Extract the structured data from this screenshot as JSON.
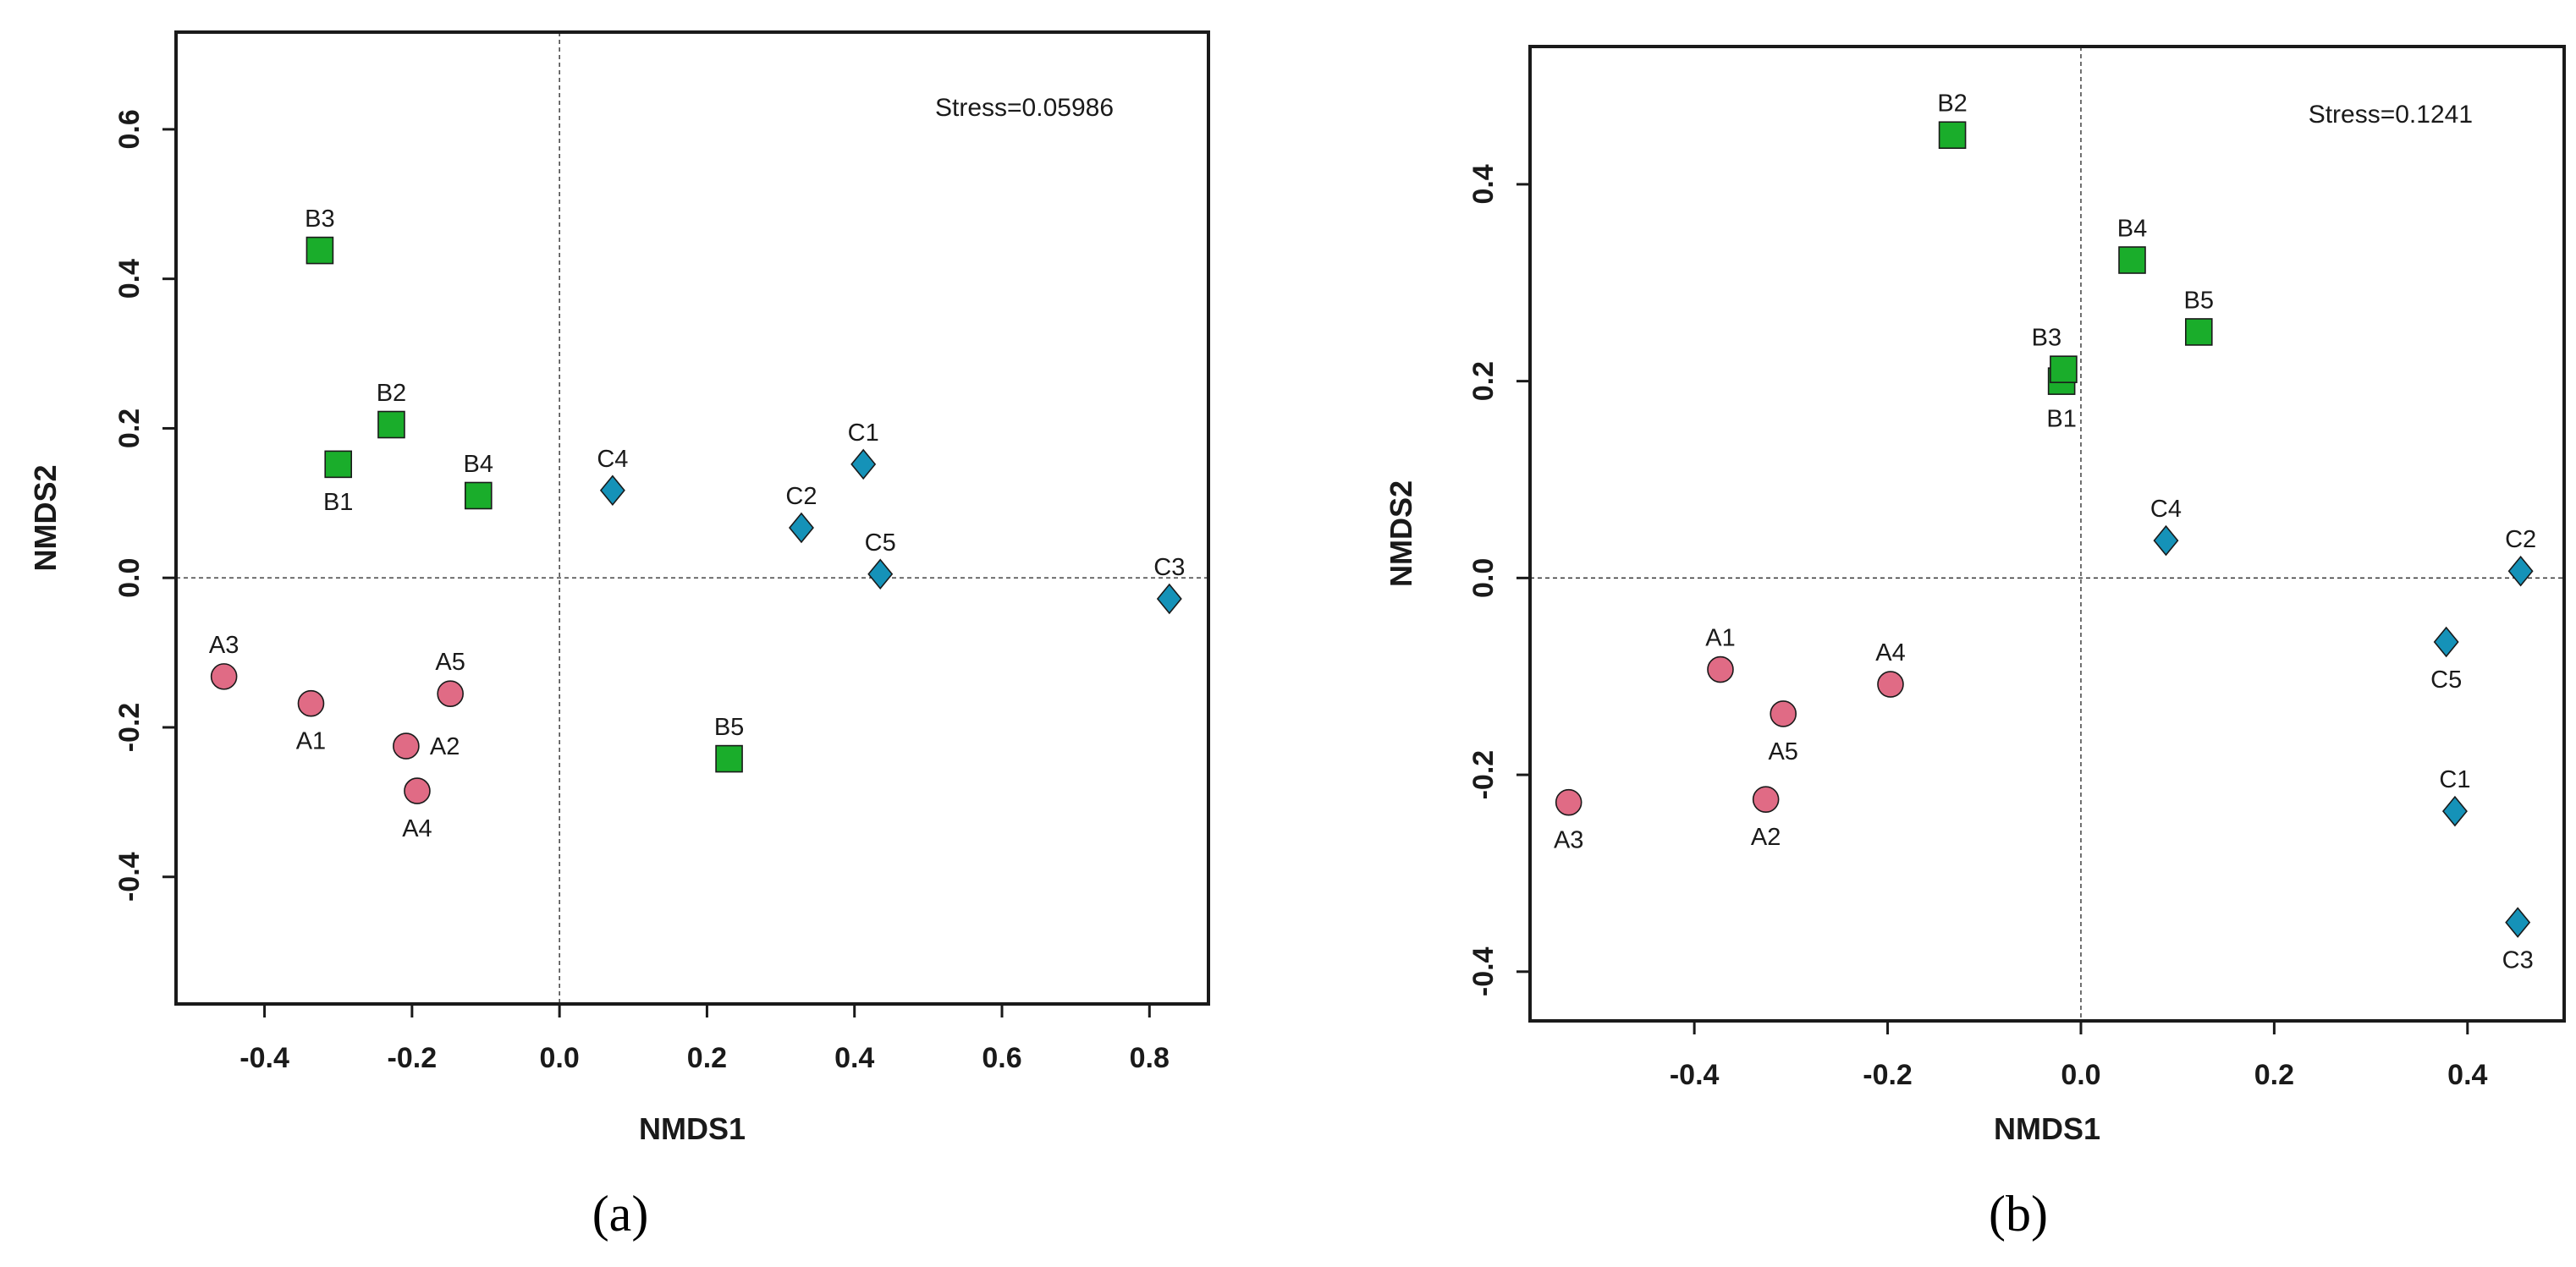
{
  "colors": {
    "A": "#e06b85",
    "B": "#1aad2b",
    "C": "#1592b8",
    "stroke": "#1a1a1a"
  },
  "chart_data": [
    {
      "type": "scatter",
      "panel_label": "(a)",
      "xlabel": "NMDS1",
      "ylabel": "NMDS2",
      "stress_text": "Stress=0.05986",
      "xlim": [
        -0.52,
        0.88
      ],
      "ylim": [
        -0.57,
        0.73
      ],
      "xticks": [
        -0.4,
        -0.2,
        0.0,
        0.2,
        0.4,
        0.6,
        0.8
      ],
      "xtick_labels": [
        "-0.4",
        "-0.2",
        "0.0",
        "0.2",
        "0.4",
        "0.6",
        "0.8"
      ],
      "yticks": [
        -0.4,
        -0.2,
        0.0,
        0.2,
        0.4,
        0.6
      ],
      "ytick_labels": [
        "-0.4",
        "-0.2",
        "0.0",
        "0.2",
        "0.4",
        "0.6"
      ],
      "reference_lines": {
        "x": 0,
        "y": 0
      },
      "series": [
        {
          "name": "A",
          "marker": "circle",
          "points": [
            {
              "label": "A1",
              "x": -0.337,
              "y": -0.168,
              "label_pos": "below"
            },
            {
              "label": "A2",
              "x": -0.208,
              "y": -0.225,
              "label_pos": "right"
            },
            {
              "label": "A3",
              "x": -0.455,
              "y": -0.132,
              "label_pos": "above"
            },
            {
              "label": "A4",
              "x": -0.193,
              "y": -0.285,
              "label_pos": "below"
            },
            {
              "label": "A5",
              "x": -0.148,
              "y": -0.155,
              "label_pos": "above"
            }
          ]
        },
        {
          "name": "B",
          "marker": "square",
          "points": [
            {
              "label": "B1",
              "x": -0.3,
              "y": 0.152,
              "label_pos": "below"
            },
            {
              "label": "B2",
              "x": -0.228,
              "y": 0.205,
              "label_pos": "above"
            },
            {
              "label": "B3",
              "x": -0.325,
              "y": 0.438,
              "label_pos": "above"
            },
            {
              "label": "B4",
              "x": -0.11,
              "y": 0.11,
              "label_pos": "above"
            },
            {
              "label": "B5",
              "x": 0.23,
              "y": -0.242,
              "label_pos": "above"
            }
          ]
        },
        {
          "name": "C",
          "marker": "diamond",
          "points": [
            {
              "label": "C1",
              "x": 0.412,
              "y": 0.152,
              "label_pos": "above"
            },
            {
              "label": "C2",
              "x": 0.328,
              "y": 0.067,
              "label_pos": "above"
            },
            {
              "label": "C3",
              "x": 0.827,
              "y": -0.028,
              "label_pos": "above"
            },
            {
              "label": "C4",
              "x": 0.072,
              "y": 0.117,
              "label_pos": "above"
            },
            {
              "label": "C5",
              "x": 0.435,
              "y": 0.005,
              "label_pos": "above"
            }
          ]
        }
      ]
    },
    {
      "type": "scatter",
      "panel_label": "(b)",
      "xlabel": "NMDS1",
      "ylabel": "NMDS2",
      "stress_text": "Stress=0.1241",
      "xlim": [
        -0.57,
        0.5
      ],
      "ylim": [
        -0.45,
        0.54
      ],
      "xticks": [
        -0.4,
        -0.2,
        0.0,
        0.2,
        0.4
      ],
      "xtick_labels": [
        "-0.4",
        "-0.2",
        "0.0",
        "0.2",
        "0.4"
      ],
      "yticks": [
        -0.4,
        -0.2,
        0.0,
        0.2,
        0.4
      ],
      "ytick_labels": [
        "-0.4",
        "-0.2",
        "0.0",
        "0.2",
        "0.4"
      ],
      "reference_lines": {
        "x": 0,
        "y": 0
      },
      "series": [
        {
          "name": "A",
          "marker": "circle",
          "points": [
            {
              "label": "A1",
              "x": -0.373,
              "y": -0.093,
              "label_pos": "above"
            },
            {
              "label": "A2",
              "x": -0.326,
              "y": -0.225,
              "label_pos": "below"
            },
            {
              "label": "A3",
              "x": -0.53,
              "y": -0.228,
              "label_pos": "below"
            },
            {
              "label": "A4",
              "x": -0.197,
              "y": -0.108,
              "label_pos": "above"
            },
            {
              "label": "A5",
              "x": -0.308,
              "y": -0.138,
              "label_pos": "below"
            }
          ]
        },
        {
          "name": "B",
          "marker": "square",
          "points": [
            {
              "label": "B1",
              "x": -0.02,
              "y": 0.2,
              "label_pos": "below"
            },
            {
              "label": "B2",
              "x": -0.133,
              "y": 0.45,
              "label_pos": "above"
            },
            {
              "label": "B3",
              "x": -0.018,
              "y": 0.212,
              "label_pos": "above-left"
            },
            {
              "label": "B4",
              "x": 0.053,
              "y": 0.323,
              "label_pos": "above"
            },
            {
              "label": "B5",
              "x": 0.122,
              "y": 0.25,
              "label_pos": "above"
            }
          ]
        },
        {
          "name": "C",
          "marker": "diamond",
          "points": [
            {
              "label": "C1",
              "x": 0.387,
              "y": -0.237,
              "label_pos": "above"
            },
            {
              "label": "C2",
              "x": 0.455,
              "y": 0.007,
              "label_pos": "above"
            },
            {
              "label": "C3",
              "x": 0.452,
              "y": -0.35,
              "label_pos": "below"
            },
            {
              "label": "C4",
              "x": 0.088,
              "y": 0.038,
              "label_pos": "above"
            },
            {
              "label": "C5",
              "x": 0.378,
              "y": -0.065,
              "label_pos": "below"
            }
          ]
        }
      ]
    }
  ]
}
